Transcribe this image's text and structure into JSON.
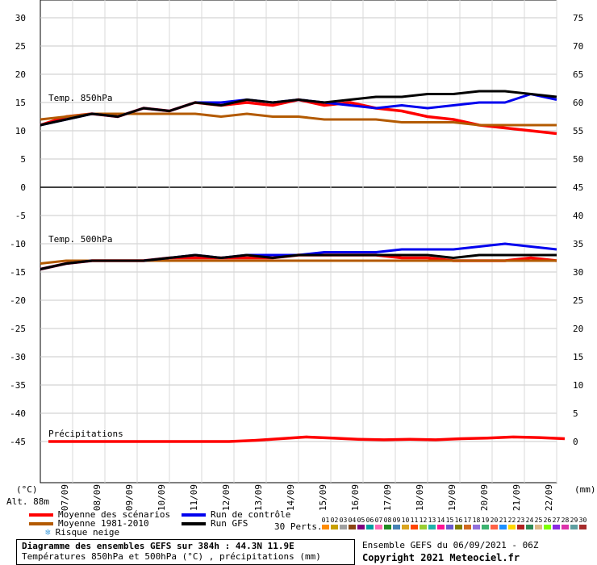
{
  "chart_data": {
    "type": "line",
    "title": "Diagramme des ensembles GEFS sur 384h : 44.3N 11.9E",
    "subtitle": "Températures 850hPa et 500hPa (°C) , précipitations (mm)",
    "x_tick_labels": [
      "07/09",
      "08/09",
      "09/09",
      "10/09",
      "11/09",
      "12/09",
      "13/09",
      "14/09",
      "15/09",
      "16/09",
      "17/09",
      "18/09",
      "19/09",
      "20/09",
      "21/09",
      "22/09"
    ],
    "left_axis": {
      "label": "(°C)",
      "ticks": [
        "30",
        "25",
        "20",
        "15",
        "10",
        "5",
        "0",
        "-5",
        "-10",
        "-15",
        "-20",
        "-25",
        "-30",
        "-35",
        "-40",
        "-45"
      ],
      "ylim": [
        -45,
        30
      ]
    },
    "right_axis": {
      "label": "(mm)",
      "ticks": [
        "75",
        "70",
        "65",
        "60",
        "55",
        "50",
        "45",
        "40",
        "35",
        "30",
        "25",
        "20",
        "15",
        "10",
        "5",
        "0"
      ],
      "ylim": [
        0,
        75
      ]
    },
    "altitude_label": "Alt. 88m",
    "panel_labels": {
      "t850": "Temp. 850hPa",
      "t500": "Temp. 500hPa",
      "precip": "Précipitations"
    },
    "series": [
      {
        "name": "Moyenne des scénarios",
        "color": "#ff0000",
        "t850": [
          11,
          12.5,
          13,
          12.5,
          14,
          13.5,
          15,
          14.5,
          15,
          14.5,
          15.5,
          14.5,
          15,
          14,
          13.5,
          12.5,
          12,
          11,
          10.5,
          10,
          9.5
        ],
        "t500": [
          -14.5,
          -13.5,
          -13,
          -13,
          -13,
          -12.5,
          -12.5,
          -12.5,
          -12.5,
          -12.5,
          -12,
          -12,
          -12,
          -12,
          -12.5,
          -12.5,
          -13,
          -13,
          -13,
          -12.5,
          -13
        ],
        "precip": [
          0,
          0,
          0,
          0,
          0,
          0,
          0,
          0,
          0.2,
          0.5,
          0.8,
          0.6,
          0.4,
          0.3,
          0.4,
          0.3,
          0.5,
          0.6,
          0.8,
          0.7,
          0.5
        ]
      },
      {
        "name": "Moyenne 1981-2010",
        "color": "#b35a00",
        "t850": [
          12,
          12.5,
          13,
          13,
          13,
          13,
          13,
          12.5,
          13,
          12.5,
          12.5,
          12,
          12,
          12,
          11.5,
          11.5,
          11.5,
          11,
          11,
          11,
          11
        ],
        "t500": [
          -13.5,
          -13,
          -13,
          -13,
          -13,
          -13,
          -13,
          -13,
          -13,
          -13,
          -13,
          -13,
          -13,
          -13,
          -13,
          -13,
          -13,
          -13,
          -13,
          -13,
          -13
        ]
      },
      {
        "name": "Run de contrôle",
        "color": "#0000ee",
        "t850": [
          11,
          12,
          13,
          12.5,
          14,
          13.5,
          15,
          15,
          15.5,
          15,
          15.5,
          15,
          14.5,
          14,
          14.5,
          14,
          14.5,
          15,
          15,
          16.5,
          15.5
        ],
        "t500": [
          -14.5,
          -13.5,
          -13,
          -13,
          -13,
          -12.5,
          -12,
          -12.5,
          -12,
          -12,
          -12,
          -11.5,
          -11.5,
          -11.5,
          -11,
          -11,
          -11,
          -10.5,
          -10,
          -10.5,
          -11
        ]
      },
      {
        "name": "Run GFS",
        "color": "#000000",
        "t850": [
          11,
          12,
          13,
          12.5,
          14,
          13.5,
          15,
          14.5,
          15.5,
          15,
          15.5,
          15,
          15.5,
          16,
          16,
          16.5,
          16.5,
          17,
          17,
          16.5,
          16
        ],
        "t500": [
          -14.5,
          -13.5,
          -13,
          -13,
          -13,
          -12.5,
          -12,
          -12.5,
          -12,
          -12.5,
          -12,
          -12,
          -12,
          -12,
          -12,
          -12,
          -12.5,
          -12,
          -12,
          -12,
          -12
        ]
      }
    ],
    "x": [
      "06/09",
      "07/09",
      "08/09",
      "09/09",
      "10/09",
      "11/09",
      "12/09",
      "13/09",
      "14/09",
      "15/09",
      "16/09",
      "17/09",
      "18/09",
      "19/09",
      "20/09",
      "21/09",
      "22/09"
    ]
  },
  "legend": {
    "items": [
      {
        "label": "Moyenne des scénarios",
        "color": "#ff0000"
      },
      {
        "label": "Moyenne 1981-2010",
        "color": "#b35a00"
      },
      {
        "label": "Run de contrôle",
        "color": "#0000ee"
      },
      {
        "label": "Run GFS",
        "color": "#000000"
      }
    ],
    "snow_label": "Risque neige",
    "perts_label": "30 Perts.",
    "pert_numbers": [
      "01",
      "02",
      "03",
      "04",
      "05",
      "06",
      "07",
      "08",
      "09",
      "10",
      "11",
      "12",
      "13",
      "14",
      "15",
      "16",
      "17",
      "18",
      "19",
      "20",
      "21",
      "22",
      "23",
      "24",
      "25",
      "26",
      "27",
      "28",
      "29",
      "30"
    ],
    "pert_colors": [
      "#ff8c00",
      "#c8a000",
      "#a0a0a0",
      "#8b4513",
      "#800080",
      "#00a0a0",
      "#ff69b4",
      "#228b22",
      "#4682b4",
      "#daa520",
      "#ff4500",
      "#9acd32",
      "#20b2aa",
      "#ff1493",
      "#6a5acd",
      "#808000",
      "#d2691e",
      "#9370db",
      "#3cb371",
      "#ff6347",
      "#1e90ff",
      "#ffd700",
      "#b22222",
      "#2e8b57",
      "#deb887",
      "#7fff00",
      "#8a2be2",
      "#d3a",
      "#5f9ea0",
      "#a52a2a"
    ]
  },
  "footer": {
    "title": "Diagramme des ensembles GEFS sur 384h : 44.3N 11.9E",
    "subtitle": "Températures 850hPa et 500hPa (°C) , précipitations (mm)",
    "ensemble": "Ensemble GEFS du 06/09/2021 - 06Z",
    "copyright": "Copyright 2021 Meteociel.fr"
  }
}
